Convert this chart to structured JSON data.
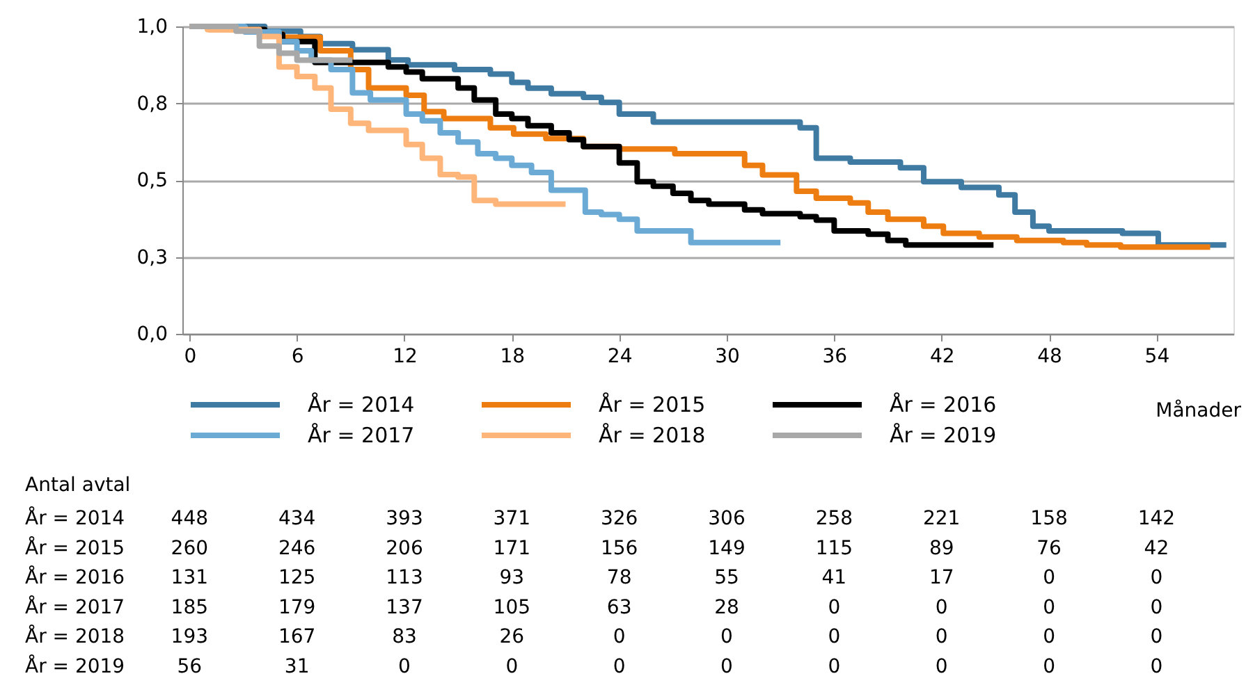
{
  "chart_data": {
    "type": "step",
    "xlabel": "Månader",
    "xlim": [
      -0.4,
      58.3
    ],
    "xticks": [
      0,
      6,
      12,
      18,
      24,
      30,
      36,
      42,
      48,
      54
    ],
    "ylim": [
      0,
      1
    ],
    "yticks": [
      {
        "value": 0,
        "label": "0,0"
      },
      {
        "value": 0.25,
        "label": "0,3"
      },
      {
        "value": 0.5,
        "label": "0,5"
      },
      {
        "value": 0.75,
        "label": "0,8"
      },
      {
        "value": 1,
        "label": "1,0"
      }
    ],
    "grid": "y",
    "legend": "bottom",
    "line_style": "solid",
    "marker": "none",
    "series": [
      {
        "name": "År = 2014",
        "color": "#3f7aa3",
        "x": [
          0,
          4.2,
          6.2,
          7.3,
          9.1,
          11.1,
          12.2,
          14.8,
          16.8,
          18.0,
          18.9,
          20.2,
          22.0,
          23.0,
          24.0,
          25.9,
          34.1,
          35.0,
          36.9,
          39.7,
          41.0,
          43.1,
          45.2,
          46.1,
          47.1,
          48.0,
          52.1,
          54.1,
          57.9
        ],
        "values": [
          1.0,
          0.985,
          0.967,
          0.944,
          0.924,
          0.891,
          0.875,
          0.86,
          0.845,
          0.818,
          0.799,
          0.781,
          0.769,
          0.753,
          0.715,
          0.689,
          0.67,
          0.571,
          0.559,
          0.54,
          0.495,
          0.476,
          0.452,
          0.396,
          0.35,
          0.335,
          0.327,
          0.289,
          0.289
        ]
      },
      {
        "name": "År = 2015",
        "color": "#ee7d11",
        "x": [
          0,
          1.1,
          4.2,
          5.2,
          7.3,
          9.0,
          10.0,
          12.1,
          13.1,
          14.2,
          16.8,
          18.1,
          19.9,
          22.0,
          24.0,
          27.1,
          31.0,
          32.0,
          33.9,
          35.0,
          36.9,
          37.9,
          39.0,
          41.0,
          42.1,
          44.1,
          46.2,
          48.8,
          50.1,
          52.0,
          57.0
        ],
        "values": [
          1.0,
          0.99,
          0.975,
          0.965,
          0.921,
          0.86,
          0.8,
          0.776,
          0.723,
          0.7,
          0.67,
          0.65,
          0.635,
          0.609,
          0.601,
          0.586,
          0.548,
          0.517,
          0.464,
          0.441,
          0.426,
          0.396,
          0.373,
          0.35,
          0.327,
          0.315,
          0.304,
          0.297,
          0.289,
          0.282,
          0.282
        ]
      },
      {
        "name": "År = 2016",
        "color": "#000000",
        "x": [
          0,
          3.1,
          4.2,
          5.2,
          7.0,
          11.1,
          12.1,
          13.0,
          15.0,
          15.9,
          17.1,
          18.0,
          18.9,
          20.2,
          21.2,
          22.0,
          24.0,
          25.0,
          25.9,
          27.0,
          28.0,
          29.0,
          31.0,
          32.0,
          34.1,
          35.0,
          36.0,
          37.9,
          39.0,
          40.0,
          44.9
        ],
        "values": [
          1.0,
          0.99,
          0.974,
          0.951,
          0.883,
          0.868,
          0.852,
          0.83,
          0.8,
          0.761,
          0.715,
          0.7,
          0.677,
          0.654,
          0.632,
          0.609,
          0.556,
          0.495,
          0.48,
          0.457,
          0.434,
          0.422,
          0.403,
          0.391,
          0.381,
          0.37,
          0.335,
          0.324,
          0.304,
          0.289,
          0.289
        ]
      },
      {
        "name": "År = 2017",
        "color": "#6aaad4",
        "x": [
          0,
          3.1,
          5.0,
          6.0,
          6.8,
          7.9,
          9.1,
          10.1,
          12.1,
          13.0,
          14.0,
          15.0,
          16.1,
          17.1,
          18.0,
          19.1,
          20.2,
          22.1,
          23.0,
          24.0,
          25.0,
          28.0,
          33.0
        ],
        "values": [
          1.0,
          0.982,
          0.951,
          0.921,
          0.89,
          0.86,
          0.784,
          0.761,
          0.715,
          0.693,
          0.654,
          0.624,
          0.586,
          0.571,
          0.548,
          0.525,
          0.467,
          0.396,
          0.388,
          0.373,
          0.335,
          0.297,
          0.297
        ]
      },
      {
        "name": "År = 2018",
        "color": "#fdb57a",
        "x": [
          0,
          1.0,
          3.9,
          5.0,
          6.0,
          7.0,
          7.9,
          9.0,
          10.0,
          12.1,
          13.0,
          14.0,
          15.0,
          15.9,
          17.1,
          21.0
        ],
        "values": [
          1.0,
          0.99,
          0.967,
          0.868,
          0.837,
          0.8,
          0.731,
          0.685,
          0.662,
          0.616,
          0.571,
          0.518,
          0.51,
          0.434,
          0.422,
          0.422
        ]
      },
      {
        "name": "År = 2019",
        "color": "#a8a8a8",
        "x": [
          0,
          2.6,
          3.9,
          5.0,
          6.0,
          9.1
        ],
        "values": [
          1.0,
          0.985,
          0.936,
          0.913,
          0.89,
          0.89
        ]
      }
    ],
    "annotations": [
      "Antal avtal",
      "År = 2014",
      "448",
      "434",
      "393",
      "371",
      "326",
      "306",
      "258",
      "221",
      "158",
      "142",
      "År = 2015",
      "260",
      "246",
      "206",
      "171",
      "156",
      "149",
      "115",
      "89",
      "76",
      "42",
      "År = 2016",
      "131",
      "125",
      "113",
      "93",
      "78",
      "55",
      "41",
      "17",
      "0",
      "0",
      "År = 2017",
      "185",
      "179",
      "137",
      "105",
      "63",
      "28",
      "0",
      "0",
      "0",
      "0",
      "År = 2018",
      "193",
      "167",
      "83",
      "26",
      "0",
      "0",
      "0",
      "0",
      "0",
      "0",
      "År = 2019",
      "56",
      "31",
      "0",
      "0",
      "0",
      "0",
      "0",
      "0",
      "0",
      "0"
    ]
  }
}
